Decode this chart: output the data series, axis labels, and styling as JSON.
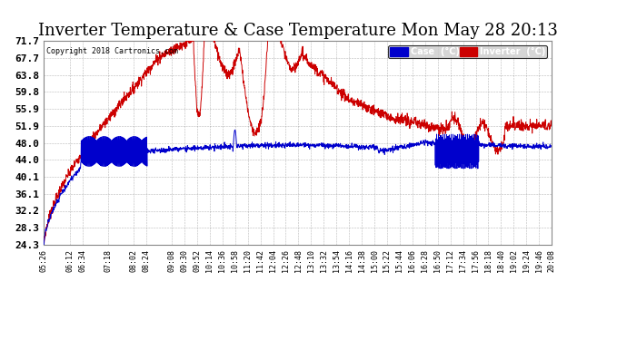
{
  "title": "Inverter Temperature & Case Temperature Mon May 28 20:13",
  "copyright": "Copyright 2018 Cartronics.com",
  "yticks": [
    24.3,
    28.3,
    32.2,
    36.1,
    40.1,
    44.0,
    48.0,
    51.9,
    55.9,
    59.8,
    63.8,
    67.7,
    71.7
  ],
  "ymin": 24.3,
  "ymax": 71.7,
  "line_case_color": "#0000cc",
  "line_inverter_color": "#cc0000",
  "background_color": "#ffffff",
  "grid_color": "#888888",
  "title_fontsize": 13,
  "tick_fontsize": 8,
  "total_minutes": 882,
  "xtick_labels": [
    "05:26",
    "06:12",
    "06:34",
    "07:18",
    "08:02",
    "08:24",
    "09:08",
    "09:30",
    "09:52",
    "10:14",
    "10:36",
    "10:58",
    "11:20",
    "11:42",
    "12:04",
    "12:26",
    "12:48",
    "13:10",
    "13:32",
    "13:54",
    "14:16",
    "14:38",
    "15:00",
    "15:22",
    "15:44",
    "16:06",
    "16:28",
    "16:50",
    "17:12",
    "17:34",
    "17:56",
    "18:18",
    "18:40",
    "19:02",
    "19:24",
    "19:46",
    "20:08"
  ]
}
